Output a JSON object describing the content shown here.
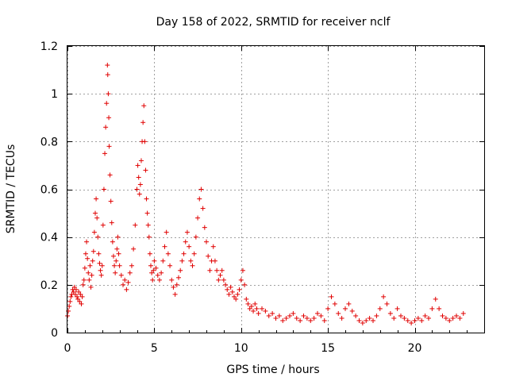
{
  "chart_data": {
    "type": "scatter",
    "title": "Day 158 of 2022, SRMTID for receiver nclf",
    "xlabel": "GPS time / hours",
    "ylabel": "SRMTID / TECUs",
    "xlim": [
      0,
      24
    ],
    "ylim": [
      0,
      1.2
    ],
    "xticks": [
      0,
      5,
      10,
      15,
      20
    ],
    "xtick_labels": [
      "0",
      "5",
      "10",
      "15",
      "20"
    ],
    "yticks": [
      0,
      0.2,
      0.4,
      0.6,
      0.8,
      1.0,
      1.2
    ],
    "ytick_labels": [
      "0",
      "0.2",
      "0.4",
      "0.6",
      "0.8",
      "1",
      "1.2"
    ],
    "grid": true,
    "marker": "plus",
    "color": "#e00000",
    "series": [
      {
        "name": "nclf",
        "x": [
          0.0,
          0.05,
          0.1,
          0.15,
          0.2,
          0.25,
          0.3,
          0.35,
          0.4,
          0.45,
          0.5,
          0.55,
          0.6,
          0.65,
          0.7,
          0.75,
          0.8,
          0.85,
          0.9,
          0.95,
          1.0,
          1.05,
          1.1,
          1.15,
          1.2,
          1.25,
          1.3,
          1.35,
          1.4,
          1.45,
          1.5,
          1.55,
          1.6,
          1.65,
          1.7,
          1.75,
          1.8,
          1.85,
          1.9,
          1.95,
          2.0,
          2.05,
          2.1,
          2.15,
          2.2,
          2.25,
          2.3,
          2.32,
          2.35,
          2.38,
          2.4,
          2.45,
          2.5,
          2.55,
          2.6,
          2.65,
          2.7,
          2.75,
          2.8,
          2.85,
          2.9,
          2.95,
          3.0,
          3.1,
          3.2,
          3.3,
          3.4,
          3.5,
          3.6,
          3.7,
          3.8,
          3.9,
          4.0,
          4.05,
          4.1,
          4.15,
          4.2,
          4.25,
          4.3,
          4.35,
          4.4,
          4.45,
          4.5,
          4.55,
          4.6,
          4.65,
          4.7,
          4.75,
          4.8,
          4.85,
          4.9,
          4.95,
          5.0,
          5.1,
          5.2,
          5.3,
          5.4,
          5.5,
          5.6,
          5.7,
          5.8,
          5.9,
          6.0,
          6.1,
          6.2,
          6.3,
          6.4,
          6.5,
          6.6,
          6.7,
          6.8,
          6.9,
          7.0,
          7.1,
          7.2,
          7.3,
          7.4,
          7.5,
          7.6,
          7.7,
          7.8,
          7.9,
          8.0,
          8.1,
          8.2,
          8.3,
          8.4,
          8.5,
          8.6,
          8.7,
          8.8,
          8.9,
          9.0,
          9.1,
          9.2,
          9.3,
          9.4,
          9.5,
          9.6,
          9.7,
          9.8,
          9.9,
          10.0,
          10.1,
          10.2,
          10.3,
          10.4,
          10.5,
          10.6,
          10.7,
          10.8,
          10.9,
          11.0,
          11.2,
          11.4,
          11.6,
          11.8,
          12.0,
          12.2,
          12.4,
          12.6,
          12.8,
          13.0,
          13.2,
          13.4,
          13.6,
          13.8,
          14.0,
          14.2,
          14.4,
          14.6,
          14.8,
          15.0,
          15.2,
          15.4,
          15.6,
          15.8,
          16.0,
          16.2,
          16.4,
          16.6,
          16.8,
          17.0,
          17.2,
          17.4,
          17.6,
          17.8,
          18.0,
          18.2,
          18.4,
          18.6,
          18.8,
          19.0,
          19.2,
          19.4,
          19.6,
          19.8,
          20.0,
          20.2,
          20.4,
          20.6,
          20.8,
          21.0,
          21.2,
          21.4,
          21.6,
          21.8,
          22.0,
          22.2,
          22.4,
          22.6,
          22.8
        ],
        "y": [
          0.07,
          0.09,
          0.11,
          0.13,
          0.15,
          0.16,
          0.18,
          0.17,
          0.19,
          0.16,
          0.18,
          0.15,
          0.14,
          0.17,
          0.13,
          0.16,
          0.12,
          0.15,
          0.2,
          0.22,
          0.27,
          0.33,
          0.38,
          0.31,
          0.25,
          0.22,
          0.28,
          0.19,
          0.24,
          0.3,
          0.34,
          0.42,
          0.5,
          0.56,
          0.48,
          0.4,
          0.33,
          0.29,
          0.26,
          0.24,
          0.28,
          0.45,
          0.6,
          0.75,
          0.86,
          0.96,
          1.12,
          1.08,
          1.0,
          0.9,
          0.78,
          0.66,
          0.55,
          0.46,
          0.38,
          0.32,
          0.28,
          0.25,
          0.3,
          0.35,
          0.4,
          0.33,
          0.28,
          0.24,
          0.2,
          0.22,
          0.18,
          0.21,
          0.25,
          0.28,
          0.35,
          0.45,
          0.6,
          0.7,
          0.65,
          0.58,
          0.62,
          0.72,
          0.8,
          0.88,
          0.95,
          0.8,
          0.68,
          0.56,
          0.5,
          0.45,
          0.4,
          0.33,
          0.28,
          0.25,
          0.22,
          0.26,
          0.3,
          0.27,
          0.24,
          0.22,
          0.25,
          0.3,
          0.36,
          0.42,
          0.33,
          0.28,
          0.22,
          0.19,
          0.16,
          0.2,
          0.23,
          0.26,
          0.3,
          0.33,
          0.38,
          0.42,
          0.36,
          0.3,
          0.28,
          0.33,
          0.4,
          0.48,
          0.56,
          0.6,
          0.52,
          0.44,
          0.38,
          0.32,
          0.26,
          0.3,
          0.36,
          0.3,
          0.26,
          0.22,
          0.24,
          0.26,
          0.22,
          0.2,
          0.18,
          0.16,
          0.19,
          0.17,
          0.15,
          0.14,
          0.16,
          0.18,
          0.22,
          0.26,
          0.2,
          0.14,
          0.12,
          0.1,
          0.11,
          0.09,
          0.12,
          0.1,
          0.08,
          0.1,
          0.09,
          0.07,
          0.08,
          0.06,
          0.07,
          0.05,
          0.06,
          0.07,
          0.08,
          0.06,
          0.05,
          0.07,
          0.06,
          0.05,
          0.06,
          0.08,
          0.07,
          0.05,
          0.1,
          0.15,
          0.12,
          0.08,
          0.06,
          0.1,
          0.12,
          0.09,
          0.07,
          0.05,
          0.04,
          0.05,
          0.06,
          0.05,
          0.07,
          0.1,
          0.15,
          0.12,
          0.08,
          0.06,
          0.1,
          0.07,
          0.06,
          0.05,
          0.04,
          0.05,
          0.06,
          0.05,
          0.07,
          0.06,
          0.1,
          0.14,
          0.1,
          0.07,
          0.06,
          0.05,
          0.06,
          0.07,
          0.06,
          0.08
        ]
      }
    ]
  }
}
